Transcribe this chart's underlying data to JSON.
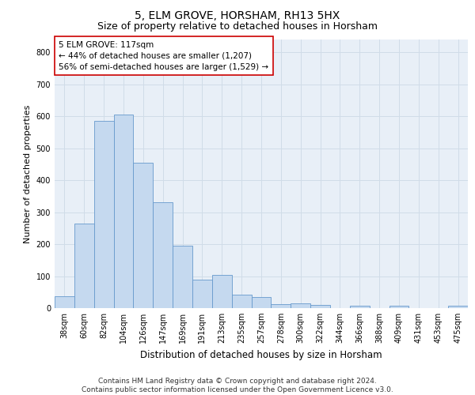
{
  "title": "5, ELM GROVE, HORSHAM, RH13 5HX",
  "subtitle": "Size of property relative to detached houses in Horsham",
  "xlabel": "Distribution of detached houses by size in Horsham",
  "ylabel": "Number of detached properties",
  "categories": [
    "38sqm",
    "60sqm",
    "82sqm",
    "104sqm",
    "126sqm",
    "147sqm",
    "169sqm",
    "191sqm",
    "213sqm",
    "235sqm",
    "257sqm",
    "278sqm",
    "300sqm",
    "322sqm",
    "344sqm",
    "366sqm",
    "388sqm",
    "409sqm",
    "431sqm",
    "453sqm",
    "475sqm"
  ],
  "values": [
    38,
    265,
    585,
    605,
    455,
    330,
    195,
    90,
    103,
    43,
    35,
    13,
    14,
    10,
    0,
    8,
    0,
    8,
    0,
    0,
    8
  ],
  "bar_color": "#c5d9ef",
  "bar_edge_color": "#6699cc",
  "annotation_box_text": "5 ELM GROVE: 117sqm\n← 44% of detached houses are smaller (1,207)\n56% of semi-detached houses are larger (1,529) →",
  "annotation_box_color": "#cc0000",
  "annotation_bg_color": "#ffffff",
  "ylim": [
    0,
    840
  ],
  "yticks": [
    0,
    100,
    200,
    300,
    400,
    500,
    600,
    700,
    800
  ],
  "grid_color": "#d0dce8",
  "background_color": "#e8eff7",
  "footnote": "Contains HM Land Registry data © Crown copyright and database right 2024.\nContains public sector information licensed under the Open Government Licence v3.0.",
  "title_fontsize": 10,
  "subtitle_fontsize": 9,
  "annotation_fontsize": 7.5,
  "tick_fontsize": 7,
  "ylabel_fontsize": 8,
  "xlabel_fontsize": 8.5,
  "footnote_fontsize": 6.5
}
